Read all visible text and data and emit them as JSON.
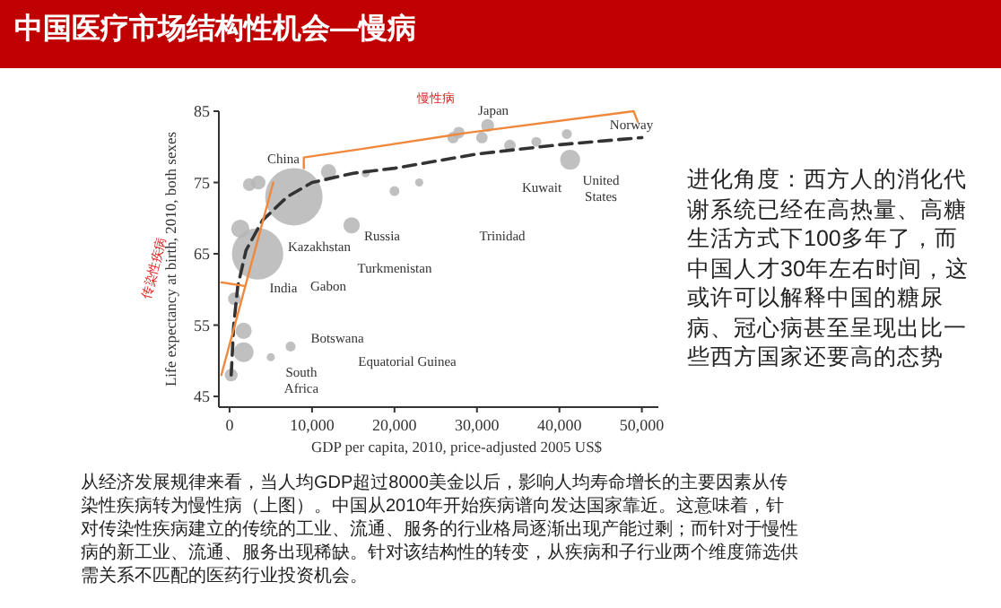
{
  "chart_data": {
    "type": "bubble",
    "title": "中国医疗市场结构性机会—慢病",
    "xlabel": "GDP per capita, 2010, price-adjusted 2005 US$",
    "ylabel": "Life expectancy at birth, 2010, both sexes",
    "xlim": [
      -1300,
      52000
    ],
    "ylim": [
      43.5,
      85
    ],
    "xticks": [
      0,
      {
        "value": 10000,
        "label": "10,000"
      },
      {
        "value": 20000,
        "label": "20,000"
      },
      {
        "value": 30000,
        "label": "30,000"
      },
      {
        "value": 40000,
        "label": "40,000"
      },
      {
        "value": 50000,
        "label": "50,000"
      }
    ],
    "yticks": [
      45,
      55,
      65,
      75,
      85
    ],
    "grid": false,
    "series": [
      {
        "type": "bubble",
        "color": "#b5b5b5",
        "x": [
          3400,
          7800,
          600,
          1700,
          1700,
          200,
          3500,
          2400,
          12000,
          14800,
          7400,
          1300,
          5000,
          31300,
          30600,
          27100,
          27800,
          34000,
          37200,
          40900,
          41300,
          20000,
          16500,
          23000
        ],
        "values": [
          65,
          73,
          58.7,
          54.2,
          51.2,
          48,
          75,
          74.7,
          76.5,
          69,
          52,
          68.5,
          50.5,
          83,
          81.3,
          81.3,
          82,
          80.2,
          80.7,
          81.8,
          78.2,
          73.8,
          76.3,
          75
        ],
        "sizes": [
          0.8,
          1,
          0.05,
          0.08,
          0.12,
          0.05,
          0.06,
          0.05,
          0.07,
          0.08,
          0.03,
          0.1,
          0.02,
          0.05,
          0.04,
          0.04,
          0.04,
          0.04,
          0.03,
          0.03,
          0.12,
          0.03,
          0.02,
          0.02
        ]
      },
      {
        "type": "line",
        "color": "#333333",
        "line_style": "dashed",
        "marker": "none",
        "x": [
          200,
          500,
          1000,
          2000,
          4000,
          7000,
          10000,
          15000,
          20000,
          30000,
          40000,
          50000
        ],
        "values": [
          48,
          55,
          60.5,
          65.5,
          69.7,
          73,
          75,
          76.3,
          77,
          79,
          80.3,
          81.3
        ]
      },
      {
        "type": "line",
        "color": "#f0883c",
        "line_style": "solid",
        "marker": "none",
        "x": [
          -1000,
          5300
        ],
        "values": [
          48,
          75
        ]
      },
      {
        "type": "line",
        "color": "#f0883c",
        "line_style": "solid",
        "marker": "none",
        "x": [
          9000,
          9000,
          16000,
          29000,
          49000,
          49500
        ],
        "values": [
          77,
          78.5,
          79.7,
          82,
          85,
          83.5
        ]
      },
      {
        "type": "line",
        "color": "#f0883c",
        "line_style": "solid",
        "marker": "none",
        "x": [
          -1000,
          1800
        ],
        "values": [
          61,
          60.5
        ]
      }
    ],
    "annotations": [
      "进化角度：西方人的消化代谢系统已经在高热量、高糖生活方式下100多年了，而中国人才30年左右时间，这或许可以解释中国的糖尿病、冠心病甚至呈现出比一些西方国家还要高的态势",
      "从经济发展规律来看，当人均GDP超过8000美金以后，影响人均寿命增长的主要因素从传染性疾病转为慢性病（上图）。中国从2010年开始疾病谱向发达国家靠近。这意味着，针对传染性疾病建立的传统的工业、流通、服务的行业格局逐渐出现产能过剩；而针对于慢性病的新工业、流通、服务出现稀缺。针对该结构性的转变，从疾病和子行业两个维度筛选供需关系不匹配的医药行业投资机会。",
      "慢性病",
      "传染性疾病",
      "China",
      "Kazakhstan",
      "India",
      "Gabon",
      "Botswana",
      "South Africa",
      "Russia",
      "Turkmenistan",
      "Equatorial Guinea",
      "Trinidad",
      "Japan",
      "Norway",
      "Kuwait",
      "United States"
    ]
  }
}
